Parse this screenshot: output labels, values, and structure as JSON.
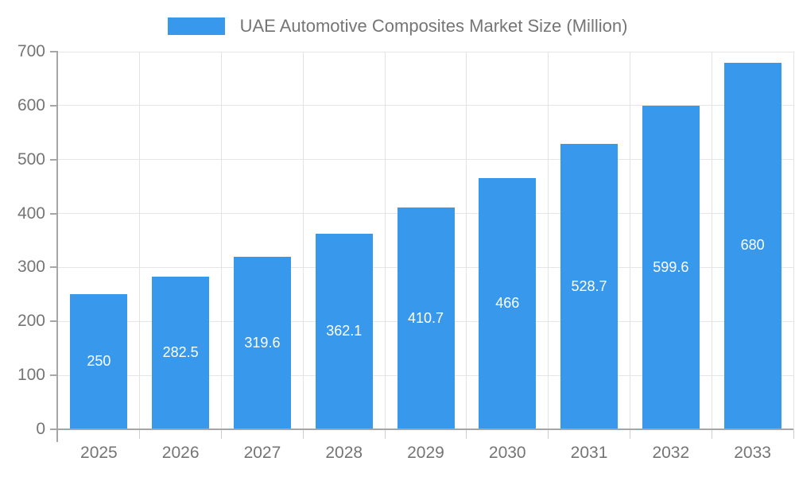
{
  "chart_data": {
    "type": "bar",
    "title": "UAE Automotive Composites Market Size (Million)",
    "legend_position": "top",
    "grid": true,
    "categories": [
      "2025",
      "2026",
      "2027",
      "2028",
      "2029",
      "2030",
      "2031",
      "2032",
      "2033"
    ],
    "values": [
      250,
      282.5,
      319.6,
      362.1,
      410.7,
      466,
      528.7,
      599.6,
      680
    ],
    "value_labels": [
      "250",
      "282.5",
      "319.6",
      "362.1",
      "410.7",
      "466",
      "528.7",
      "599.6",
      "680"
    ],
    "xlabel": "",
    "ylabel": "",
    "ylim": [
      0,
      700
    ],
    "y_ticks": [
      0,
      100,
      200,
      300,
      400,
      500,
      600,
      700
    ],
    "colors": {
      "bar": "#3899EC",
      "value_label": "#FFFFFF",
      "axis_text": "#757575",
      "axis_line": "#A6A6A6",
      "grid_horizontal": "#E6E6E6",
      "grid_vertical": "#E3E3E3",
      "category_tick": "#CFCFCF",
      "background": "#FFFFFF"
    }
  }
}
